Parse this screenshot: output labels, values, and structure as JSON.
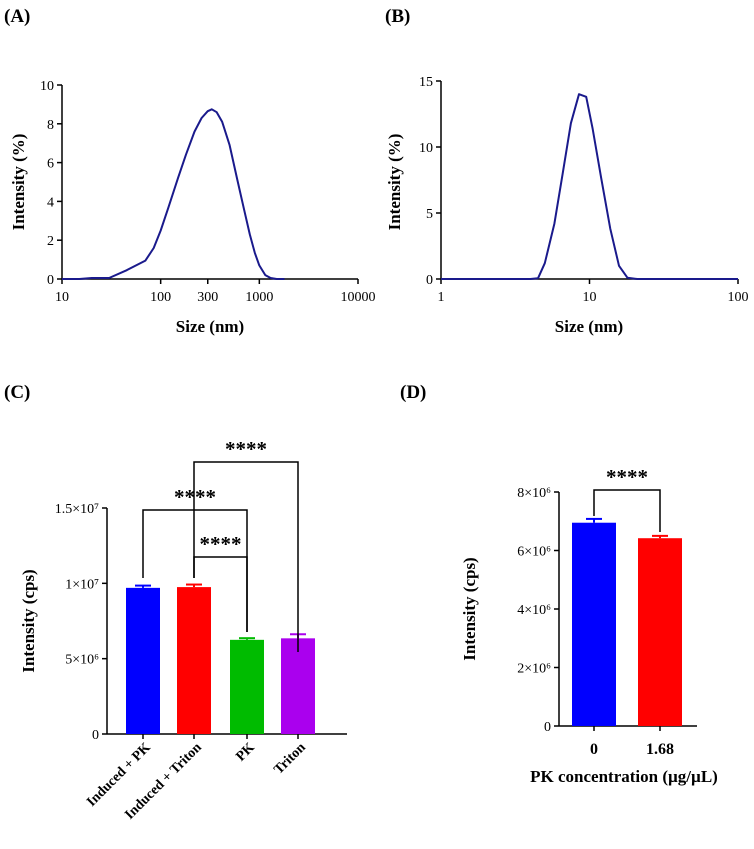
{
  "chart_data": [
    {
      "panel": "(A)",
      "type": "line",
      "xscale": "log",
      "xlabel": "Size (nm)",
      "ylabel": "Intensity (%)",
      "xlim": [
        10,
        10000
      ],
      "ylim": [
        0,
        10
      ],
      "xticks": [
        10,
        100,
        300,
        1000,
        10000
      ],
      "xtick_labels": [
        "10",
        "100",
        "300",
        "1000",
        "10000"
      ],
      "yticks": [
        0,
        2,
        4,
        6,
        8,
        10
      ],
      "ytick_labels": [
        "0",
        "2",
        "4",
        "6",
        "8",
        "10"
      ],
      "color": "#1a1a8c",
      "x": [
        10,
        15,
        20,
        30,
        45,
        70,
        85,
        100,
        120,
        150,
        180,
        220,
        260,
        300,
        330,
        370,
        420,
        500,
        600,
        700,
        800,
        900,
        1000,
        1150,
        1300,
        1500,
        1800
      ],
      "y": [
        0,
        0,
        0.05,
        0.05,
        0.45,
        0.95,
        1.6,
        2.5,
        3.7,
        5.2,
        6.4,
        7.6,
        8.3,
        8.65,
        8.75,
        8.6,
        8.1,
        6.9,
        5.1,
        3.6,
        2.3,
        1.35,
        0.7,
        0.2,
        0.05,
        0,
        0
      ]
    },
    {
      "panel": "(B)",
      "type": "line",
      "xscale": "log",
      "xlabel": "Size (nm)",
      "ylabel": "Intensity (%)",
      "xlim": [
        1,
        100
      ],
      "ylim": [
        0,
        15
      ],
      "xticks": [
        1,
        10,
        100
      ],
      "xtick_labels": [
        "1",
        "10",
        "100"
      ],
      "yticks": [
        0,
        5,
        10,
        15
      ],
      "ytick_labels": [
        "0",
        "5",
        "10",
        "15"
      ],
      "color": "#1a1a8c",
      "x": [
        1,
        3,
        4,
        4.5,
        5,
        5.8,
        6.6,
        7.5,
        8.5,
        9.5,
        10.5,
        12,
        13.8,
        15.8,
        18,
        21,
        30,
        100
      ],
      "y": [
        0,
        0,
        0,
        0.05,
        1.2,
        4.2,
        8.0,
        11.8,
        14.0,
        13.8,
        11.4,
        7.6,
        3.8,
        1.0,
        0.1,
        0,
        0,
        0
      ]
    },
    {
      "panel": "(C)",
      "type": "bar",
      "ylabel": "Intensity (cps)",
      "ylim": [
        0,
        15000000
      ],
      "ytick_values": [
        0,
        5000000,
        10000000,
        15000000
      ],
      "ytick_labels": [
        "0",
        "5×10⁶",
        "1×10⁷",
        "1.5×10⁷"
      ],
      "categories": [
        "Induced + PK",
        "Induced + Triton",
        "PK",
        "Triton"
      ],
      "values": [
        9700000,
        9750000,
        6250000,
        6350000
      ],
      "errors": [
        150000,
        170000,
        110000,
        270000
      ],
      "colors": [
        "#0000ff",
        "#ff0000",
        "#00bb00",
        "#aa00ee"
      ],
      "significance": [
        {
          "from": 1,
          "to": 3,
          "label": "****"
        },
        {
          "from": 0,
          "to": 2,
          "label": "****"
        },
        {
          "from": 1,
          "to": 2,
          "label": "****"
        }
      ]
    },
    {
      "panel": "(D)",
      "type": "bar",
      "xlabel": "PK concentration (µg/µL)",
      "ylabel": "Intensity (cps)",
      "ylim": [
        0,
        8000000
      ],
      "ytick_values": [
        0,
        2000000,
        4000000,
        6000000,
        8000000
      ],
      "ytick_labels": [
        "0",
        "2×10⁶",
        "4×10⁶",
        "6×10⁶",
        "8×10⁶"
      ],
      "categories": [
        "0",
        "1.68"
      ],
      "values": [
        6950000,
        6420000
      ],
      "errors": [
        130000,
        80000
      ],
      "colors": [
        "#0000ff",
        "#ff0000"
      ],
      "significance": [
        {
          "from": 0,
          "to": 1,
          "label": "****"
        }
      ]
    }
  ]
}
